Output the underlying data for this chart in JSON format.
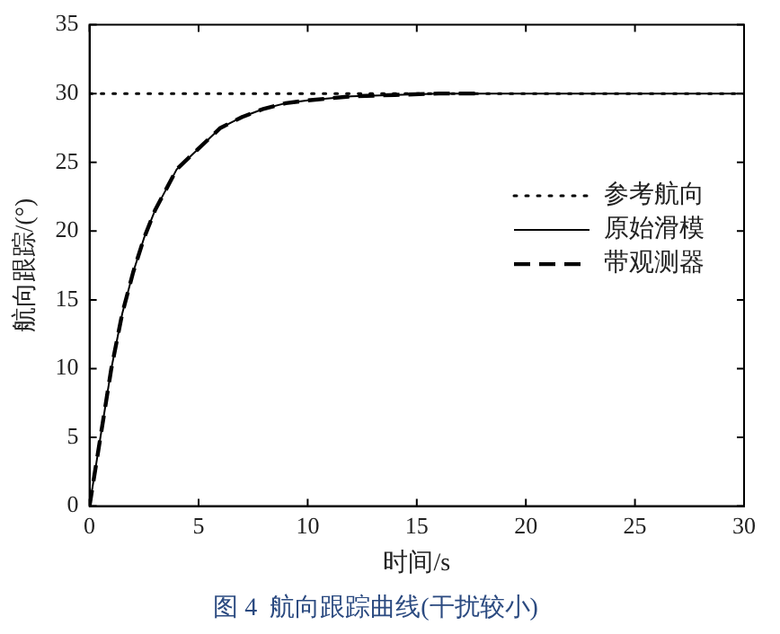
{
  "chart_data": {
    "type": "line",
    "title": "图 4  航向跟踪曲线(干扰较小)",
    "xlabel": "时间/s",
    "ylabel": "航向跟踪/(°)",
    "xlim": [
      0,
      30
    ],
    "xticks": [
      0,
      5,
      10,
      15,
      20,
      25,
      30
    ],
    "ylim": [
      0,
      35
    ],
    "yticks": [
      0,
      5,
      10,
      15,
      20,
      25,
      30,
      35
    ],
    "grid": false,
    "legend": "right",
    "marker": "none",
    "series": [
      {
        "name": "参考航向",
        "color": "#000000",
        "line_style": "dotted",
        "x": [
          0,
          30
        ],
        "values": [
          30,
          30
        ]
      },
      {
        "name": "原始滑模",
        "color": "#000000",
        "line_style": "solid",
        "x": [
          0,
          0.5,
          1,
          1.5,
          2,
          2.5,
          3,
          3.5,
          4,
          5,
          6,
          7,
          8,
          9,
          10,
          12,
          14,
          16,
          20,
          30
        ],
        "values": [
          0,
          5,
          10,
          14,
          17,
          19.5,
          21.5,
          23,
          24.5,
          26,
          27.5,
          28.3,
          28.9,
          29.3,
          29.5,
          29.8,
          29.9,
          30,
          30,
          30
        ]
      },
      {
        "name": "带观测器",
        "color": "#000000",
        "line_style": "dashed",
        "x": [
          0,
          0.5,
          1,
          1.5,
          2,
          2.5,
          3,
          3.5,
          4,
          5,
          6,
          7,
          8,
          9,
          10,
          12,
          14,
          16,
          18
        ],
        "values": [
          0,
          5,
          10,
          14,
          17,
          19.5,
          21.5,
          23,
          24.5,
          26,
          27.5,
          28.3,
          28.9,
          29.3,
          29.5,
          29.8,
          29.9,
          30,
          30
        ]
      }
    ]
  }
}
